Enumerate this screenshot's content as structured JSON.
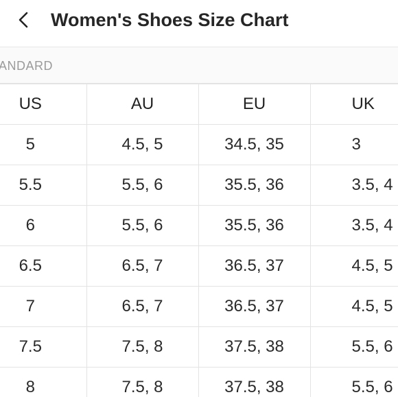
{
  "header": {
    "back_icon": "chevron-left-icon",
    "title": "Women's Shoes Size Chart"
  },
  "section": {
    "label": "ANDARD"
  },
  "table": {
    "columns": [
      "US",
      "AU",
      "EU",
      "UK"
    ],
    "rows": [
      [
        "5",
        "4.5, 5",
        "34.5, 35",
        "3"
      ],
      [
        "5.5",
        "5.5, 6",
        "35.5, 36",
        "3.5, 4"
      ],
      [
        "6",
        "5.5, 6",
        "35.5, 36",
        "3.5, 4"
      ],
      [
        "6.5",
        "6.5, 7",
        "36.5, 37",
        "4.5, 5"
      ],
      [
        "7",
        "6.5, 7",
        "36.5, 37",
        "4.5, 5"
      ],
      [
        "7.5",
        "7.5, 8",
        "37.5, 38",
        "5.5, 6"
      ],
      [
        "8",
        "7.5, 8",
        "37.5, 38",
        "5.5, 6"
      ]
    ]
  },
  "colors": {
    "text": "#262626",
    "muted": "#9b9b9b",
    "divider": "#e3e3e3",
    "background": "#ffffff"
  }
}
